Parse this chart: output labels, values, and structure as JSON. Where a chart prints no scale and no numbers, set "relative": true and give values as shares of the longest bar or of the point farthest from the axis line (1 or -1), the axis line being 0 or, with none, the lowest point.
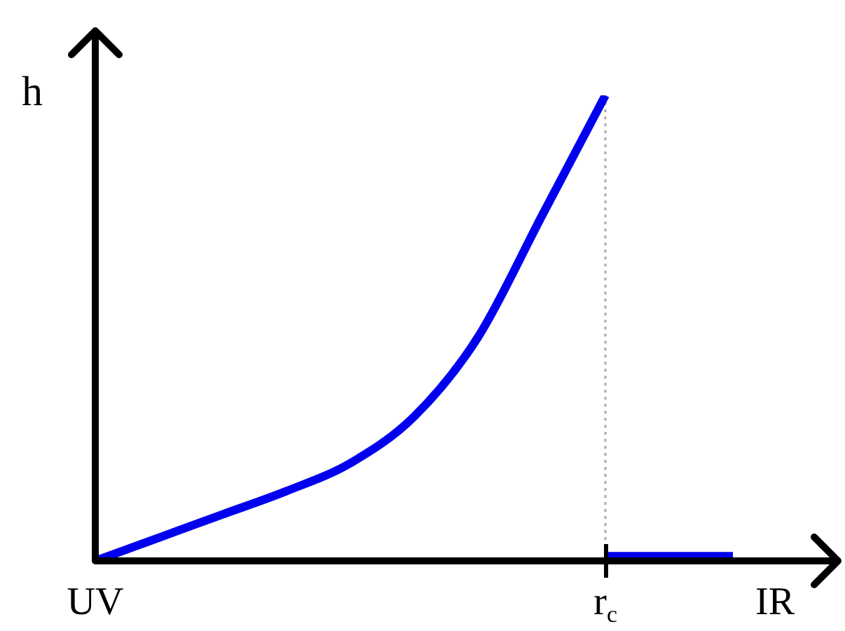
{
  "chart_data": {
    "type": "line",
    "relative": true,
    "xlabel": "IR",
    "ylabel": "h",
    "categories": [
      "UV",
      null,
      null,
      null,
      null,
      null,
      null,
      null,
      "r$_{c}$",
      null,
      null
    ],
    "series": [
      {
        "color": "#0000ee",
        "values": [
          0,
          0.05,
          0.1,
          0.15,
          0.21,
          0.31,
          0.48,
          0.74,
          1,
          null,
          null
        ]
      },
      {
        "color": "#0000ee",
        "values": [
          null,
          null,
          null,
          null,
          null,
          null,
          null,
          null,
          0.01,
          0.01,
          0.01
        ]
      }
    ],
    "ref_lines": [
      {
        "axis": "x",
        "value": "r$_{c}$",
        "color": "#aaaaaa",
        "line_style": "dotted"
      }
    ],
    "grid": false,
    "legend": false,
    "marker": "none",
    "line_style": "solid"
  }
}
